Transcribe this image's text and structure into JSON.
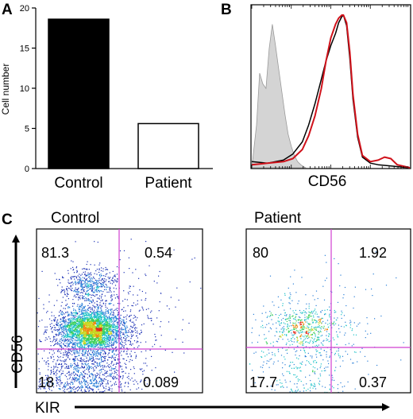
{
  "panel_labels": {
    "a": "A",
    "b": "B",
    "c": "C"
  },
  "chart_data": [
    {
      "type": "bar",
      "panel": "A",
      "ylabel": "Cell number",
      "ylim": [
        0,
        20
      ],
      "yticks": [
        "0",
        "5",
        "10",
        "15",
        "20"
      ],
      "categories": [
        "Control",
        "Patient"
      ],
      "values": [
        18.6,
        5.6
      ],
      "colors": [
        "#000000",
        "#ffffff"
      ],
      "edge_color": "#000000",
      "grid": false
    },
    {
      "type": "line",
      "panel": "B",
      "xlabel": "CD56",
      "xscale": "log",
      "grid": false,
      "series": [
        {
          "style": "filled",
          "color": "#d4d4d4",
          "edge": "#9a9a9a",
          "x": [
            0.0,
            0.03,
            0.05,
            0.07,
            0.09,
            0.11,
            0.13,
            0.15,
            0.17,
            0.19,
            0.21,
            0.23,
            0.25,
            0.27,
            0.29,
            0.31,
            0.34
          ],
          "y": [
            0.0,
            0.28,
            0.62,
            0.55,
            0.52,
            0.78,
            0.94,
            0.8,
            0.65,
            0.5,
            0.35,
            0.22,
            0.14,
            0.08,
            0.04,
            0.02,
            0.0
          ]
        },
        {
          "style": "line",
          "color": "#000000",
          "x": [
            0.0,
            0.1,
            0.2,
            0.26,
            0.32,
            0.36,
            0.4,
            0.44,
            0.47,
            0.5,
            0.53,
            0.55,
            0.57,
            0.58,
            0.6,
            0.62,
            0.64,
            0.67,
            0.7,
            0.75,
            0.8,
            0.9,
            1.0
          ],
          "y": [
            0.04,
            0.03,
            0.05,
            0.09,
            0.17,
            0.28,
            0.42,
            0.58,
            0.7,
            0.8,
            0.88,
            0.95,
            0.99,
            1.0,
            0.93,
            0.72,
            0.45,
            0.2,
            0.07,
            0.03,
            0.02,
            0.01,
            0.0
          ]
        },
        {
          "style": "line",
          "color": "#d0121b",
          "x": [
            0.0,
            0.1,
            0.2,
            0.26,
            0.32,
            0.36,
            0.4,
            0.44,
            0.47,
            0.5,
            0.53,
            0.55,
            0.57,
            0.58,
            0.6,
            0.62,
            0.64,
            0.67,
            0.7,
            0.75,
            0.8,
            0.84,
            0.88,
            0.92,
            1.0
          ],
          "y": [
            0.02,
            0.03,
            0.04,
            0.06,
            0.12,
            0.21,
            0.34,
            0.52,
            0.7,
            0.85,
            0.94,
            0.98,
            1.0,
            1.0,
            0.95,
            0.76,
            0.48,
            0.22,
            0.08,
            0.04,
            0.05,
            0.07,
            0.06,
            0.02,
            0.0
          ]
        }
      ]
    },
    {
      "type": "scatter",
      "panel": "C",
      "title": "Control",
      "ylabel": "CD56",
      "xlabel": "KIR",
      "gate_color": "#d040d0",
      "quadrants": {
        "upper_left": "81.3",
        "upper_right": "0.54",
        "lower_left": "18",
        "lower_right": "0.089"
      }
    },
    {
      "type": "scatter",
      "panel": "C",
      "title": "Patient",
      "gate_color": "#d040d0",
      "quadrants": {
        "upper_left": "80",
        "upper_right": "1.92",
        "lower_left": "17.7",
        "lower_right": "0.37"
      }
    }
  ]
}
